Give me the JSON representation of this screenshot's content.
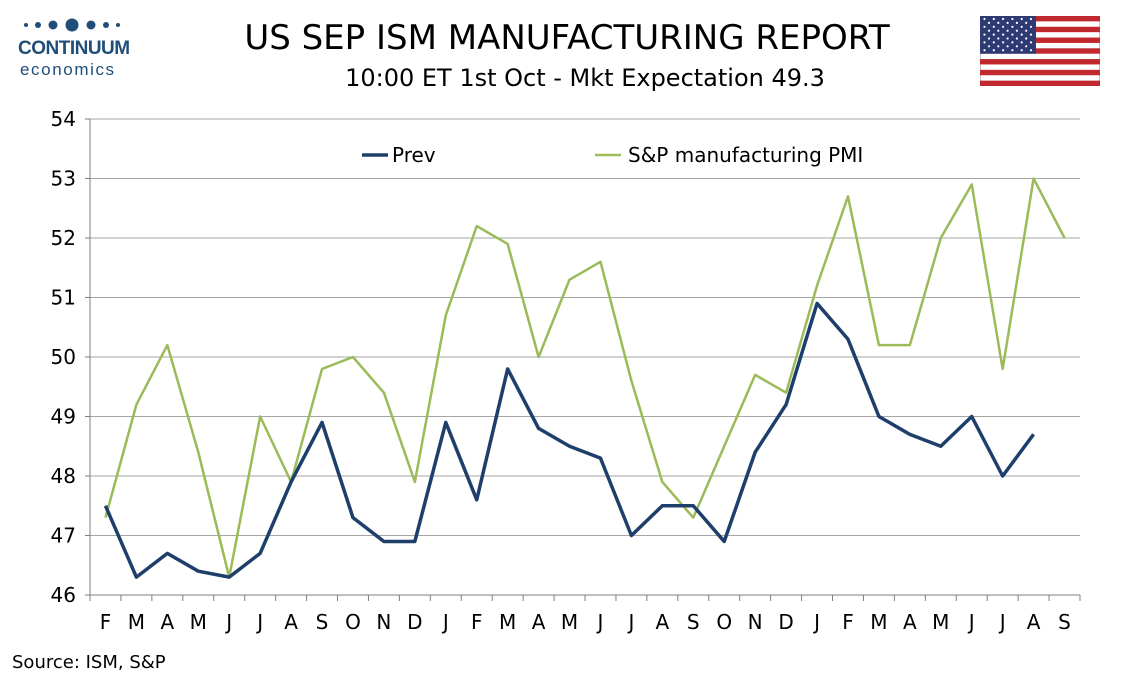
{
  "logo": {
    "name": "CONTINUUM",
    "sub": "economics",
    "color": "#1f4e79"
  },
  "title": "US SEP ISM MANUFACTURING REPORT",
  "subtitle": "10:00 ET 1st Oct - Mkt Expectation 49.3",
  "source": "Source: ISM, S&P",
  "flag": {
    "icon": "us-flag-icon"
  },
  "chart_data": {
    "type": "line",
    "categories": [
      "F",
      "M",
      "A",
      "M",
      "J",
      "J",
      "A",
      "S",
      "O",
      "N",
      "D",
      "J",
      "F",
      "M",
      "A",
      "M",
      "J",
      "J",
      "A",
      "S",
      "O",
      "N",
      "D",
      "J",
      "F",
      "M",
      "A",
      "M",
      "J",
      "J",
      "A",
      "S"
    ],
    "ylim": [
      46,
      54
    ],
    "yticks": [
      46,
      47,
      48,
      49,
      50,
      51,
      52,
      53,
      54
    ],
    "grid": true,
    "legend_position": "top",
    "series": [
      {
        "name": "Prev",
        "color": "#1f3f6b",
        "values": [
          47.5,
          46.3,
          46.7,
          46.4,
          46.3,
          46.7,
          47.9,
          48.9,
          47.3,
          46.9,
          46.9,
          48.9,
          47.6,
          49.8,
          48.8,
          48.5,
          48.3,
          47.0,
          47.5,
          47.5,
          46.9,
          48.4,
          49.2,
          50.9,
          50.3,
          49.0,
          48.7,
          48.5,
          49.0,
          48.0,
          48.7,
          null
        ]
      },
      {
        "name": "S&P manufacturing PMI",
        "color": "#9bbb59",
        "values": [
          47.3,
          49.2,
          50.2,
          48.4,
          46.3,
          49.0,
          47.9,
          49.8,
          50.0,
          49.4,
          47.9,
          50.7,
          52.2,
          51.9,
          50.0,
          51.3,
          51.6,
          49.6,
          47.9,
          47.3,
          48.5,
          49.7,
          49.4,
          51.2,
          52.7,
          50.2,
          50.2,
          52.0,
          52.9,
          49.8,
          53.0,
          52.0
        ]
      }
    ]
  }
}
